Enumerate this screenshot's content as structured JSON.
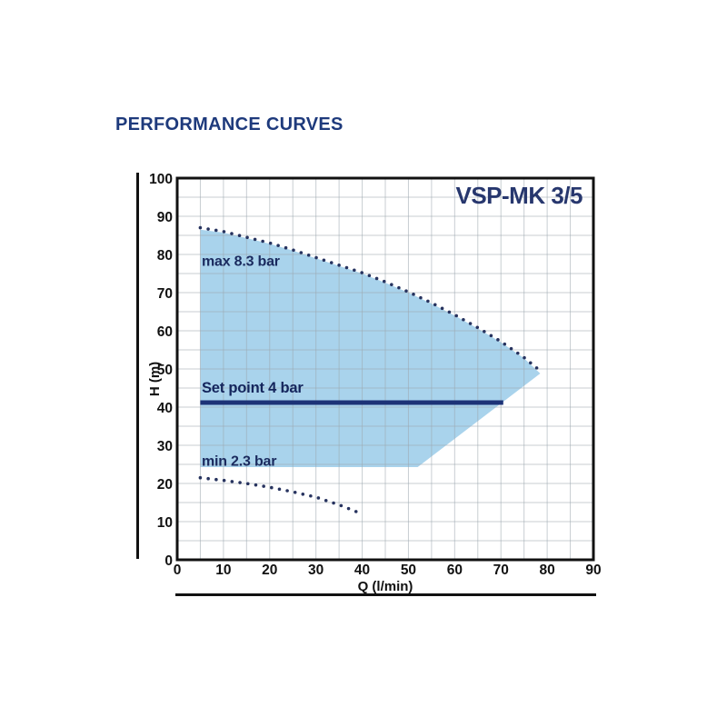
{
  "page": {
    "title": "PERFORMANCE CURVES"
  },
  "chart_data": {
    "type": "line",
    "title": "VSP-MK 3/5",
    "xlabel": "Q (l/min)",
    "ylabel": "H (m)",
    "xlim": [
      0,
      90
    ],
    "ylim": [
      0,
      100
    ],
    "x_ticks": [
      0,
      10,
      20,
      30,
      40,
      50,
      60,
      70,
      80,
      90
    ],
    "y_ticks": [
      0,
      10,
      20,
      30,
      40,
      50,
      60,
      70,
      80,
      90,
      100
    ],
    "grid": true,
    "grid_step": 5,
    "legend_position": "none",
    "series": [
      {
        "name": "max 8.3 bar",
        "style": "dotted",
        "x": [
          5,
          10,
          15,
          20,
          25,
          30,
          35,
          40,
          45,
          50,
          55,
          60,
          65,
          70,
          75,
          79
        ],
        "y": [
          87,
          86,
          84.5,
          83,
          81.2,
          79.2,
          77.2,
          75.2,
          72.8,
          70.2,
          67.3,
          64.2,
          60.8,
          57.2,
          53,
          49
        ]
      },
      {
        "name": "Set point 4 bar",
        "style": "solid",
        "x": [
          5,
          70.5
        ],
        "y": [
          41.2,
          41.2
        ]
      },
      {
        "name": "min 2.3 bar",
        "style": "dotted",
        "x": [
          5,
          10,
          15,
          20,
          25,
          30,
          35,
          40
        ],
        "y": [
          21.5,
          20.8,
          20,
          19,
          17.8,
          16.4,
          14.4,
          12
        ]
      }
    ],
    "envelope": {
      "description": "shaded operating range between max curve, set area and min limit",
      "polygon": [
        [
          5,
          24.3
        ],
        [
          5,
          86.5
        ],
        [
          10,
          85.7
        ],
        [
          15,
          84.3
        ],
        [
          20,
          82.8
        ],
        [
          25,
          81
        ],
        [
          30,
          79
        ],
        [
          35,
          77
        ],
        [
          40,
          75
        ],
        [
          45,
          72.6
        ],
        [
          50,
          70
        ],
        [
          55,
          67.1
        ],
        [
          60,
          64
        ],
        [
          65,
          60.6
        ],
        [
          70,
          57
        ],
        [
          75,
          52.8
        ],
        [
          78.5,
          48.8
        ],
        [
          52,
          24.3
        ]
      ]
    },
    "annotations": [
      {
        "text": "max 8.3 bar",
        "x": 5.3,
        "y": 77,
        "name": "max-curve-label",
        "cls": "annot"
      },
      {
        "text": "Set point 4 bar",
        "x": 5.3,
        "y": 43.8,
        "name": "setpoint-label",
        "cls": "annot-set"
      },
      {
        "text": "min 2.3 bar",
        "x": 5.3,
        "y": 24.6,
        "name": "min-curve-label",
        "cls": "annot"
      }
    ]
  },
  "colors": {
    "title_navy": "#1e3a7c",
    "model_navy": "#27376e",
    "curve_dots": "#27335f",
    "setpoint_line": "#1d3377",
    "fill_blue": "#a9d3ec",
    "grid_gray": "#9aa6ad",
    "axis_black": "#111111"
  }
}
